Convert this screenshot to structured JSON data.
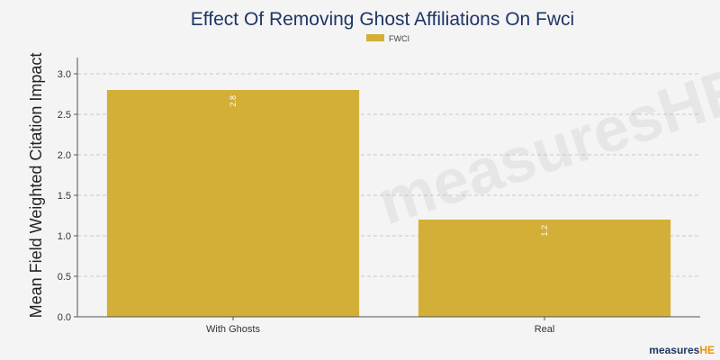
{
  "chart_data": {
    "type": "bar",
    "title": "Effect Of Removing Ghost Affiliations On Fwci",
    "xlabel": "",
    "ylabel": "Mean Field Weighted Citation Impact",
    "categories": [
      "With Ghosts",
      "Real"
    ],
    "series": [
      {
        "name": "FWCI",
        "values": [
          2.8,
          1.2
        ],
        "color": "#d4af37"
      }
    ],
    "data_labels": [
      "2.8",
      "1.2"
    ],
    "ylim": [
      0,
      3.2
    ],
    "yticks": [
      0.0,
      0.5,
      1.0,
      1.5,
      2.0,
      2.5,
      3.0
    ],
    "ytick_labels": [
      "0.0",
      "0.5",
      "1.0",
      "1.5",
      "2.0",
      "2.5",
      "3.0"
    ],
    "grid": true,
    "legend_position": "top-center"
  },
  "logo": {
    "main": "measures",
    "accent": "HE",
    "icon": "measureshe-logo-icon"
  }
}
